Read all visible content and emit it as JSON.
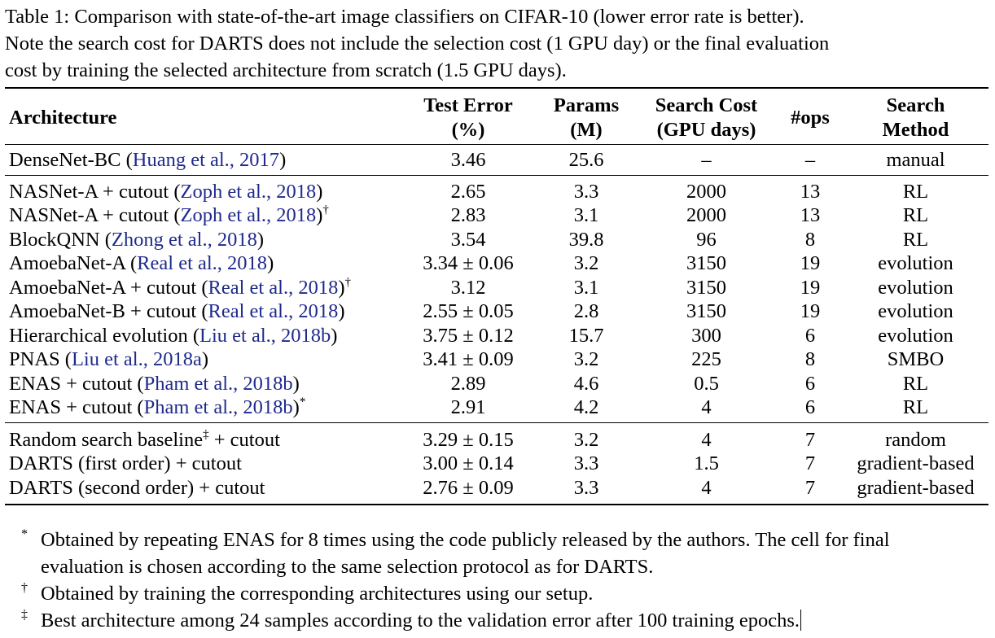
{
  "caption": {
    "lines": [
      "Table 1: Comparison with state-of-the-art image classifiers on CIFAR-10 (lower error rate is better).",
      "Note the search cost for DARTS does not include the selection cost (1 GPU day) or the final evaluation",
      "cost by training the selected architecture from scratch (1.5 GPU days)."
    ]
  },
  "table": {
    "headers": {
      "architecture": "Architecture",
      "test_error": [
        "Test Error",
        "(%)"
      ],
      "params": [
        "Params",
        "(M)"
      ],
      "search_cost": [
        "Search Cost",
        "(GPU days)"
      ],
      "ops": "#ops",
      "search_method": [
        "Search",
        "Method"
      ]
    },
    "groups": [
      [
        {
          "name": "DenseNet-BC",
          "cite": "Huang et al., 2017",
          "mark": "",
          "error": "3.46",
          "params": "25.6",
          "cost": "–",
          "ops": "–",
          "method": "manual"
        }
      ],
      [
        {
          "name": "NASNet-A + cutout",
          "cite": "Zoph et al., 2018",
          "mark": "",
          "error": "2.65",
          "params": "3.3",
          "cost": "2000",
          "ops": "13",
          "method": "RL"
        },
        {
          "name": "NASNet-A + cutout",
          "cite": "Zoph et al., 2018",
          "mark": "†",
          "error": "2.83",
          "params": "3.1",
          "cost": "2000",
          "ops": "13",
          "method": "RL"
        },
        {
          "name": "BlockQNN",
          "cite": "Zhong et al., 2018",
          "mark": "",
          "error": "3.54",
          "params": "39.8",
          "cost": "96",
          "ops": "8",
          "method": "RL"
        },
        {
          "name": "AmoebaNet-A",
          "cite": "Real et al., 2018",
          "mark": "",
          "error": "3.34 ± 0.06",
          "params": "3.2",
          "cost": "3150",
          "ops": "19",
          "method": "evolution"
        },
        {
          "name": "AmoebaNet-A + cutout",
          "cite": "Real et al., 2018",
          "mark": "†",
          "error": "3.12",
          "params": "3.1",
          "cost": "3150",
          "ops": "19",
          "method": "evolution"
        },
        {
          "name": "AmoebaNet-B + cutout",
          "cite": "Real et al., 2018",
          "mark": "",
          "error": "2.55 ± 0.05",
          "params": "2.8",
          "cost": "3150",
          "ops": "19",
          "method": "evolution"
        },
        {
          "name": "Hierarchical evolution",
          "cite": "Liu et al., 2018b",
          "mark": "",
          "error": "3.75 ± 0.12",
          "params": "15.7",
          "cost": "300",
          "ops": "6",
          "method": "evolution"
        },
        {
          "name": "PNAS",
          "cite": "Liu et al., 2018a",
          "mark": "",
          "error": "3.41 ± 0.09",
          "params": "3.2",
          "cost": "225",
          "ops": "8",
          "method": "SMBO"
        },
        {
          "name": "ENAS + cutout",
          "cite": "Pham et al., 2018b",
          "mark": "",
          "error": "2.89",
          "params": "4.6",
          "cost": "0.5",
          "ops": "6",
          "method": "RL"
        },
        {
          "name": "ENAS + cutout",
          "cite": "Pham et al., 2018b",
          "mark": "*",
          "error": "2.91",
          "params": "4.2",
          "cost": "4",
          "ops": "6",
          "method": "RL"
        }
      ],
      [
        {
          "name": "Random search baseline",
          "name_mark": "‡",
          "name_suffix": " + cutout",
          "error": "3.29 ± 0.15",
          "params": "3.2",
          "cost": "4",
          "ops": "7",
          "method": "random"
        },
        {
          "name": "DARTS (first order) + cutout",
          "error": "3.00 ± 0.14",
          "params": "3.3",
          "cost": "1.5",
          "ops": "7",
          "method": "gradient-based"
        },
        {
          "name": "DARTS (second order) + cutout",
          "error": "2.76 ± 0.09",
          "params": "3.3",
          "cost": "4",
          "ops": "7",
          "method": "gradient-based"
        }
      ]
    ]
  },
  "footnotes": [
    {
      "symbol": "*",
      "lines": [
        "Obtained by repeating ENAS for 8 times using the code publicly released by the authors. The cell for final",
        "evaluation is chosen according to the same selection protocol as for DARTS."
      ]
    },
    {
      "symbol": "†",
      "lines": [
        "Obtained by training the corresponding architectures using our setup."
      ]
    },
    {
      "symbol": "‡",
      "lines": [
        "Best architecture among 24 samples according to the validation error after 100 training epochs."
      ]
    }
  ]
}
